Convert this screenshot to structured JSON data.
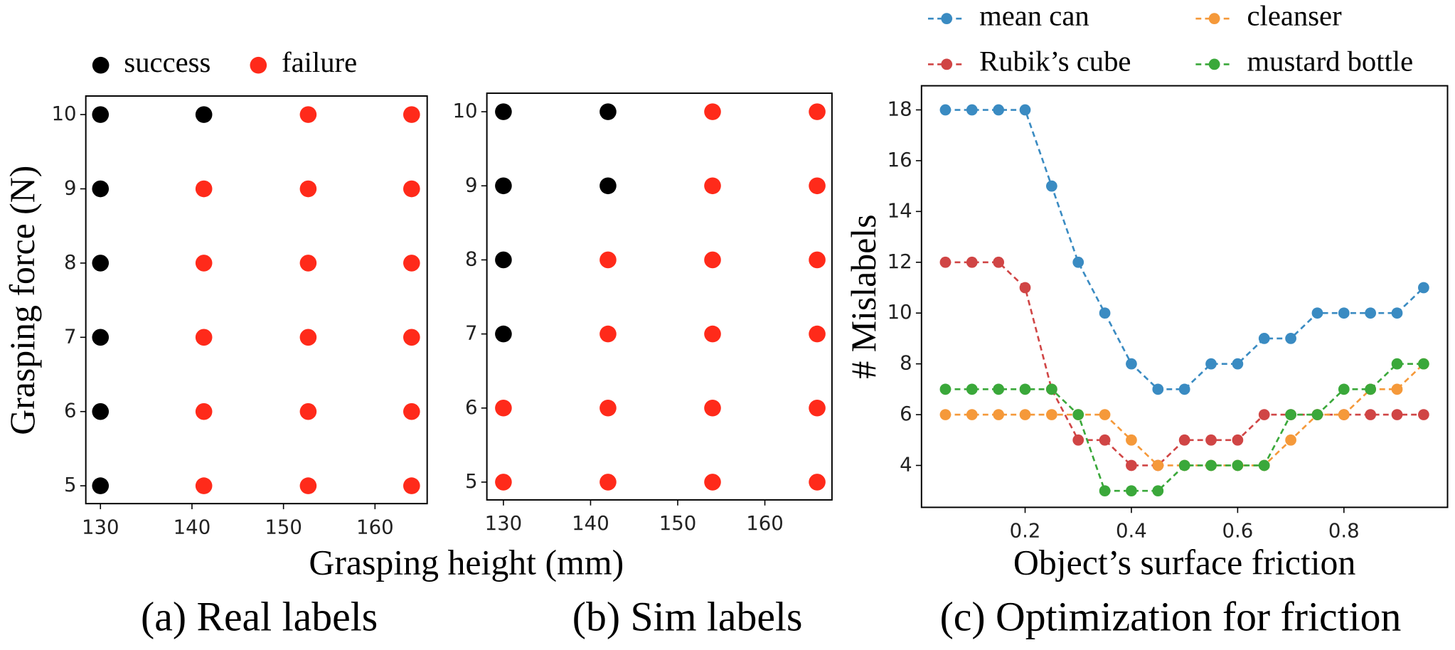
{
  "chart_data": [
    {
      "type": "scatter",
      "caption": "(a) Real labels",
      "xlabel": "Grasping height (mm)",
      "ylabel": "Grasping force (N)",
      "legend": "top",
      "xlim": [
        128.4,
        165.7
      ],
      "ylim": [
        4.76,
        10.25
      ],
      "xticks": [
        130,
        140,
        150,
        160
      ],
      "yticks": [
        5,
        6,
        7,
        8,
        9,
        10
      ],
      "grid": false,
      "series": [
        {
          "name": "success",
          "color": "#000000",
          "x": [
            130,
            130,
            130,
            130,
            130,
            130,
            141.3
          ],
          "y": [
            10,
            9,
            8,
            7,
            6,
            5,
            10
          ]
        },
        {
          "name": "failure",
          "color": "#ff2a1a",
          "x": [
            141.3,
            141.3,
            141.3,
            141.3,
            141.3,
            152.7,
            152.7,
            152.7,
            152.7,
            152.7,
            152.7,
            164,
            164,
            164,
            164,
            164,
            164
          ],
          "y": [
            9,
            8,
            7,
            6,
            5,
            10,
            9,
            8,
            7,
            6,
            5,
            10,
            9,
            8,
            7,
            6,
            5
          ]
        }
      ]
    },
    {
      "type": "scatter",
      "caption": "(b) Sim labels",
      "xlim": [
        128.1,
        167.7
      ],
      "ylim": [
        4.76,
        10.25
      ],
      "xticks": [
        130,
        140,
        150,
        160
      ],
      "yticks": [
        5,
        6,
        7,
        8,
        9,
        10
      ],
      "grid": false,
      "series": [
        {
          "color": "#000000",
          "x": [
            130,
            130,
            130,
            130,
            142,
            142
          ],
          "y": [
            10,
            9,
            8,
            7,
            10,
            9
          ]
        },
        {
          "color": "#ff2a1a",
          "x": [
            130,
            130,
            142,
            142,
            142,
            142,
            154,
            154,
            154,
            154,
            154,
            154,
            166,
            166,
            166,
            166,
            166,
            166
          ],
          "y": [
            6,
            5,
            8,
            7,
            6,
            5,
            10,
            9,
            8,
            7,
            6,
            5,
            10,
            9,
            8,
            7,
            6,
            5
          ]
        }
      ]
    },
    {
      "type": "line",
      "caption": "(c) Optimization for friction",
      "xlabel": "Object’s surface friction",
      "ylabel": "# Mislabels",
      "legend": "top",
      "xlim": [
        0.005,
        0.995
      ],
      "ylim": [
        2.35,
        18.95
      ],
      "xticks": [
        0.2,
        0.4,
        0.6,
        0.8
      ],
      "yticks": [
        4,
        6,
        8,
        10,
        12,
        14,
        16,
        18
      ],
      "grid": false,
      "x": [
        0.05,
        0.1,
        0.15,
        0.2,
        0.25,
        0.3,
        0.35,
        0.4,
        0.45,
        0.5,
        0.55,
        0.6,
        0.65,
        0.7,
        0.75,
        0.8,
        0.85,
        0.9,
        0.95
      ],
      "series": [
        {
          "name": "mean can",
          "color": "#3a8bc2",
          "values": [
            18,
            18,
            18,
            18,
            15,
            12,
            10,
            8,
            7,
            7,
            8,
            8,
            9,
            9,
            10,
            10,
            10,
            10,
            11
          ]
        },
        {
          "name": "Rubik’s cube",
          "color": "#d04545",
          "values": [
            12,
            12,
            12,
            11,
            7,
            5,
            5,
            4,
            4,
            5,
            5,
            5,
            6,
            6,
            6,
            6,
            6,
            6,
            6
          ]
        },
        {
          "name": "cleanser",
          "color": "#f5993a",
          "values": [
            6,
            6,
            6,
            6,
            6,
            6,
            6,
            5,
            4,
            4,
            4,
            4,
            4,
            5,
            6,
            6,
            7,
            7,
            8
          ]
        },
        {
          "name": "mustard bottle",
          "color": "#3aa83a",
          "values": [
            7,
            7,
            7,
            7,
            7,
            6,
            3,
            3,
            3,
            4,
            4,
            4,
            4,
            6,
            6,
            7,
            7,
            8,
            8
          ]
        }
      ]
    }
  ]
}
